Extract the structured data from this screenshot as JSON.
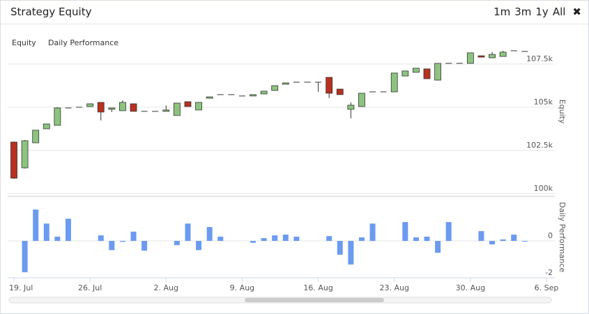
{
  "header": {
    "title": "Strategy Equity",
    "buttons": [
      "1m",
      "3m",
      "1y",
      "All"
    ],
    "close": "✖"
  },
  "chart_data": {
    "type": "candlestick",
    "categories": [
      "19. Jul",
      null,
      null,
      null,
      null,
      null,
      null,
      "26. Jul",
      null,
      null,
      null,
      null,
      null,
      null,
      "2. Aug",
      null,
      null,
      null,
      null,
      null,
      null,
      "9. Aug",
      null,
      null,
      null,
      null,
      null,
      null,
      "16. Aug",
      null,
      null,
      null,
      null,
      null,
      null,
      "23. Aug",
      null,
      null,
      null,
      null,
      null,
      null,
      "30. Aug",
      null,
      null,
      null,
      null,
      null,
      null,
      "6. Sep"
    ],
    "series": [
      {
        "name": "Equity",
        "type": "candlestick",
        "up_color": "#8cc47f",
        "down_color": "#b8311f",
        "open": [
          102.98,
          101.49,
          102.94,
          103.75,
          103.95,
          104.96,
          105.0,
          105.04,
          105.28,
          104.88,
          104.8,
          105.2,
          104.76,
          104.76,
          104.76,
          104.52,
          105.32,
          104.84,
          105.52,
          105.73,
          105.73,
          105.65,
          105.65,
          105.77,
          105.97,
          106.33,
          106.45,
          106.45,
          106.45,
          106.73,
          106.05,
          104.88,
          105.04,
          105.89,
          105.89,
          105.89,
          106.81,
          107.02,
          107.22,
          106.57,
          107.54,
          107.54,
          107.54,
          107.98,
          107.86,
          107.94,
          108.27,
          108.23,
          null,
          null
        ],
        "high": [
          103.02,
          103.1,
          103.67,
          104.03,
          105.0,
          104.96,
          105.0,
          105.2,
          105.28,
          104.96,
          105.4,
          105.2,
          104.76,
          104.76,
          105.1,
          105.24,
          105.32,
          105.28,
          105.6,
          105.73,
          105.73,
          105.65,
          105.73,
          105.93,
          106.25,
          106.41,
          106.45,
          106.45,
          106.45,
          106.73,
          106.05,
          105.28,
          105.81,
          105.89,
          105.89,
          106.98,
          107.1,
          107.26,
          107.22,
          107.54,
          107.54,
          107.54,
          108.15,
          107.98,
          108.2,
          108.27,
          108.27,
          108.23,
          null,
          null
        ],
        "low": [
          100.85,
          101.45,
          102.94,
          103.75,
          103.95,
          104.96,
          105.0,
          105.04,
          104.23,
          104.72,
          104.8,
          104.76,
          104.76,
          104.76,
          104.76,
          104.52,
          105.04,
          104.84,
          105.52,
          105.73,
          105.73,
          105.65,
          105.65,
          105.77,
          105.97,
          106.33,
          106.45,
          106.45,
          105.89,
          105.53,
          105.73,
          104.35,
          105.04,
          105.89,
          105.89,
          105.89,
          106.81,
          107.02,
          106.65,
          106.57,
          107.54,
          107.54,
          107.54,
          107.9,
          107.86,
          107.94,
          108.27,
          108.23,
          null,
          null
        ],
        "close": [
          100.89,
          103.06,
          103.67,
          104.03,
          104.96,
          104.96,
          105.0,
          105.2,
          104.72,
          104.96,
          105.28,
          104.76,
          104.76,
          104.76,
          104.84,
          105.24,
          105.04,
          105.28,
          105.6,
          105.73,
          105.73,
          105.65,
          105.73,
          105.93,
          106.25,
          106.41,
          106.45,
          106.45,
          106.45,
          105.81,
          105.73,
          105.12,
          105.81,
          105.89,
          105.89,
          106.98,
          107.1,
          107.26,
          106.65,
          107.54,
          107.54,
          107.54,
          108.15,
          107.9,
          108.06,
          108.19,
          108.27,
          108.23,
          null,
          null
        ]
      },
      {
        "name": "Daily Performance",
        "type": "bar",
        "axis": "y2",
        "color": "#6b9bf0",
        "values": [
          null,
          -1.7,
          1.7,
          0.94,
          0.23,
          1.2,
          null,
          null,
          0.3,
          -0.5,
          -0.05,
          0.5,
          -0.53,
          null,
          null,
          -0.23,
          0.94,
          -0.5,
          0.75,
          0.23,
          null,
          null,
          -0.1,
          0.15,
          0.3,
          0.34,
          0.23,
          null,
          null,
          0.26,
          -0.75,
          -1.28,
          0.19,
          0.94,
          null,
          null,
          1.02,
          0.19,
          0.23,
          -0.64,
          1.02,
          null,
          null,
          0.53,
          -0.19,
          0.08,
          0.34,
          -0.04,
          null,
          null
        ]
      }
    ],
    "ylim": [
      100,
      109.5
    ],
    "yticks": [
      {
        "value": 100,
        "label": "100k"
      },
      {
        "value": 102.5,
        "label": "102.5k"
      },
      {
        "value": 105,
        "label": "105k"
      },
      {
        "value": 107.5,
        "label": "107.5k"
      }
    ],
    "y2lim": [
      -2,
      2.4
    ],
    "y2ticks": [
      -2,
      0
    ],
    "grid": true
  }
}
